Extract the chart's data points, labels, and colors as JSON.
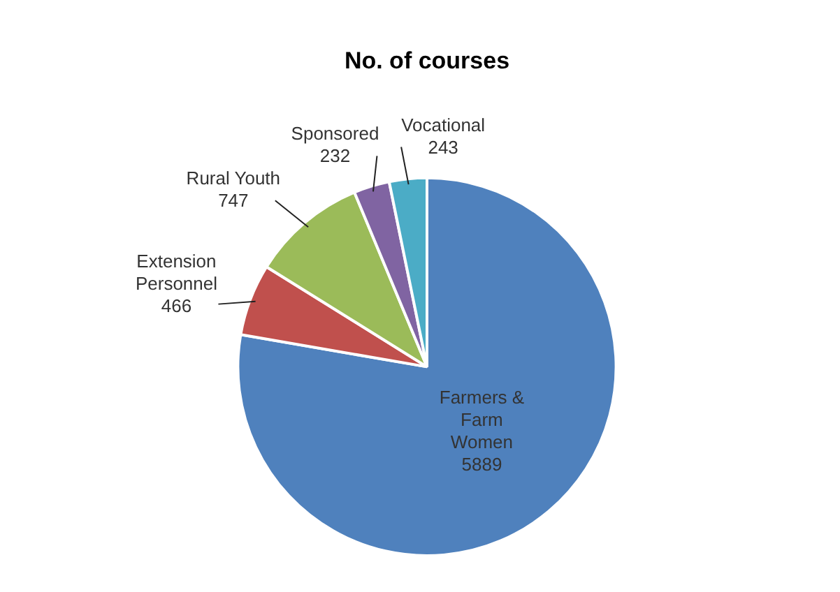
{
  "chart_data": {
    "type": "pie",
    "title": "No. of courses",
    "categories": [
      "Farmers & Farm Women",
      "Extension Personnel",
      "Rural Youth",
      "Sponsored",
      "Vocational"
    ],
    "values": [
      5889,
      466,
      747,
      232,
      243
    ],
    "colors": [
      "#4f81bd",
      "#c0504d",
      "#9bbb59",
      "#8064a2",
      "#4bacc6"
    ],
    "data_labels": true,
    "legend": false
  }
}
